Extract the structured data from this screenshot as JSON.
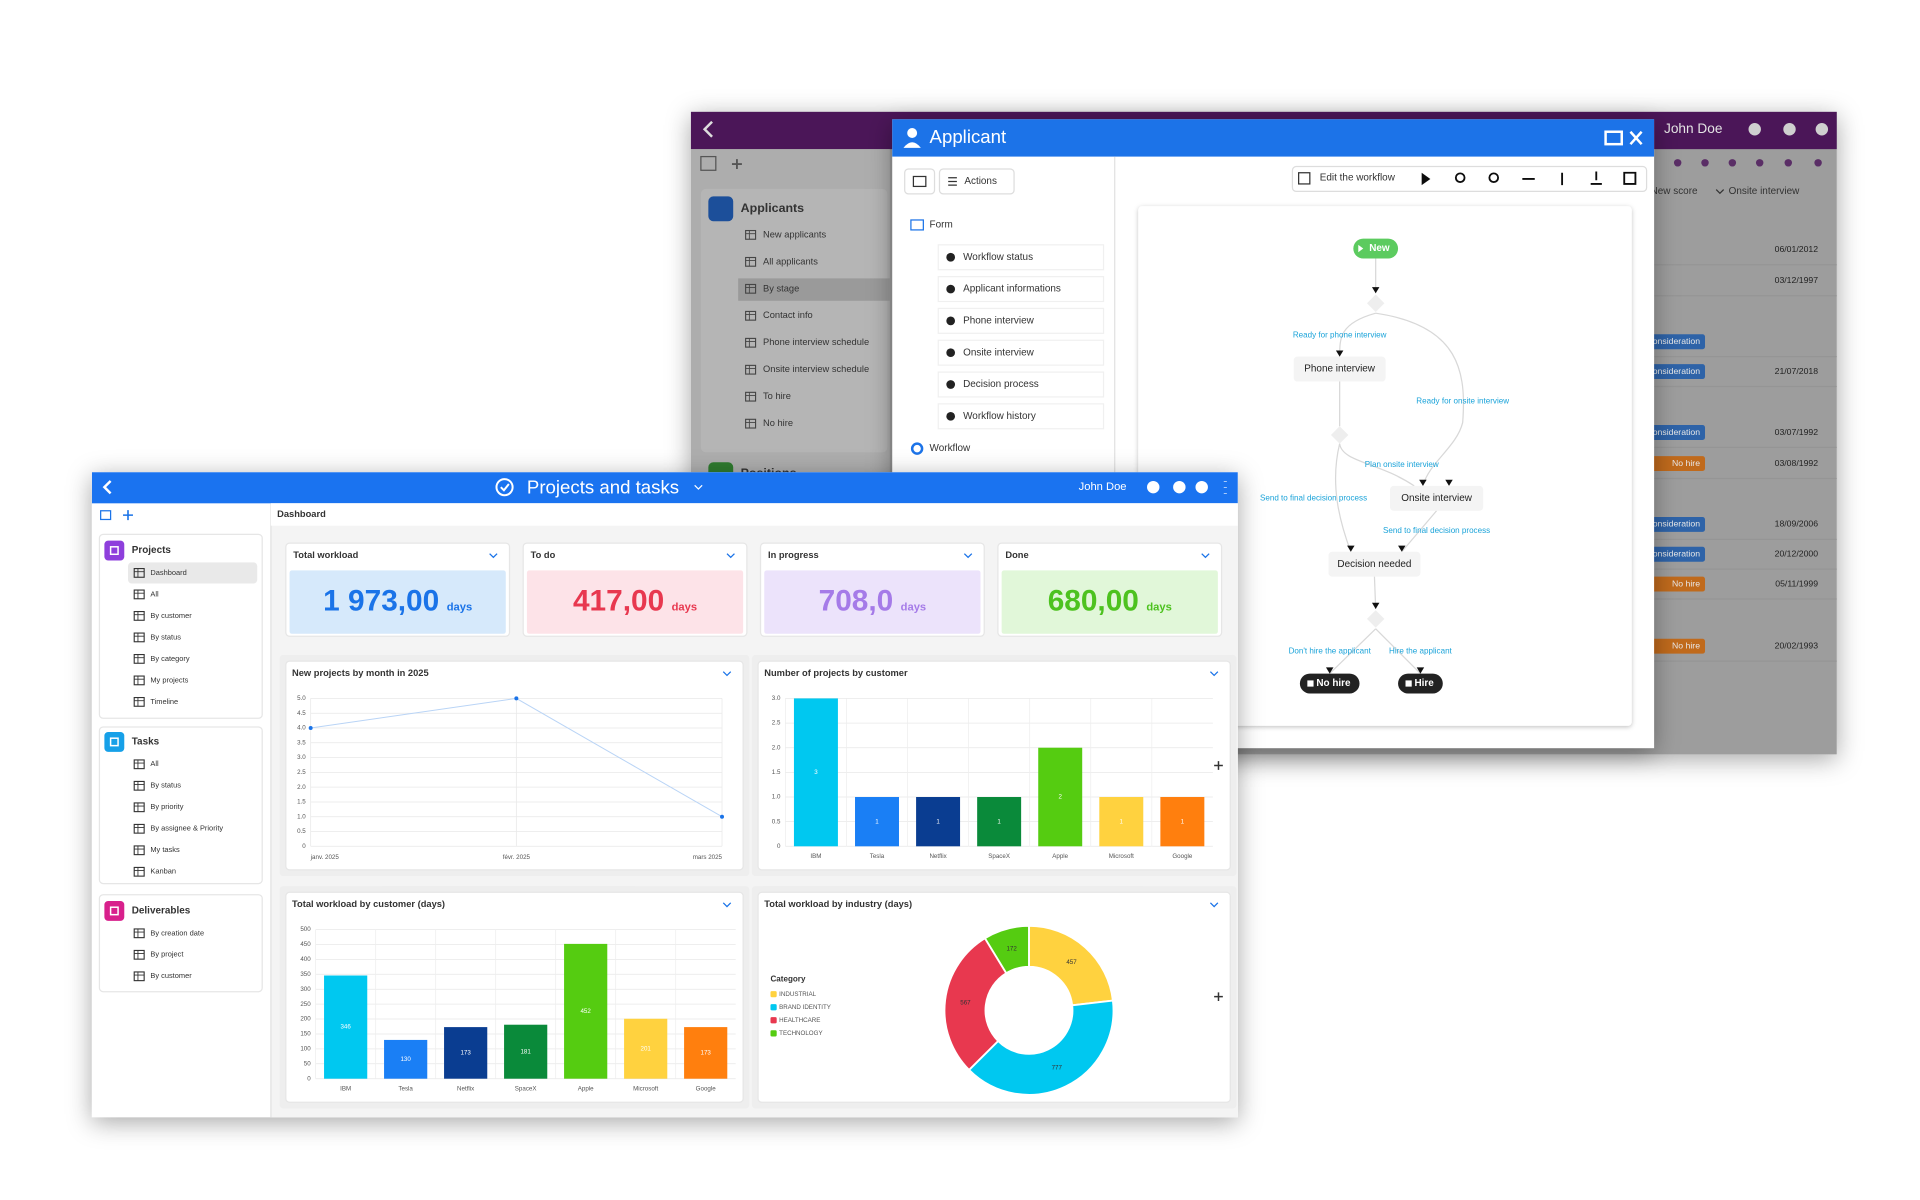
{
  "back_window": {
    "user": "John Doe",
    "sidebar": {
      "groups": [
        {
          "title": "Applicants",
          "items": [
            "New applicants",
            "All applicants",
            "By stage",
            "Contact info",
            "Phone interview schedule",
            "Onsite interview schedule",
            "To hire",
            "No hire"
          ]
        },
        {
          "title": "Positions"
        }
      ]
    },
    "table": {
      "headers": [
        "New score",
        "Onsite interview"
      ],
      "rows": [
        {
          "date": "06/01/2012"
        },
        {
          "date": "03/12/1997"
        },
        {
          "status": "Consideration"
        },
        {
          "status": "Consideration",
          "date": "21/07/2018"
        },
        {
          "status": "Consideration",
          "date": "03/07/1992"
        },
        {
          "status": "No hire",
          "date": "03/08/1992"
        },
        {
          "status": "Consideration",
          "date": "18/09/2006"
        },
        {
          "status": "Consideration",
          "date": "20/12/2000"
        },
        {
          "status": "No hire",
          "date": "05/11/1999"
        },
        {
          "status": "No hire",
          "date": "20/02/1993"
        }
      ]
    }
  },
  "modal": {
    "title": "Applicant",
    "actions": "Actions",
    "edit_workflow": "Edit the workflow",
    "tree": {
      "form": "Form",
      "items": [
        "Workflow status",
        "Applicant informations",
        "Phone interview",
        "Onsite interview",
        "Decision process",
        "Workflow history"
      ],
      "workflow": "Workflow"
    },
    "diagram": {
      "nodes": [
        "New",
        "Phone interview",
        "Onsite interview",
        "Decision needed",
        "No hire",
        "Hire"
      ],
      "edges": [
        "Ready for phone interview",
        "Ready for onsite interview",
        "Plan onsite interview",
        "Send to final decision process",
        "Send to final decision process",
        "Don't hire the applicant",
        "Hire the applicant"
      ]
    }
  },
  "front_window": {
    "title": "Projects and tasks",
    "user": "John Doe",
    "breadcrumb": "Dashboard",
    "sidebar": {
      "groups": [
        {
          "title": "Projects",
          "items": [
            "Dashboard",
            "All",
            "By customer",
            "By status",
            "By category",
            "My projects",
            "Timeline"
          ]
        },
        {
          "title": "Tasks",
          "items": [
            "All",
            "By status",
            "By priority",
            "By assignee & Priority",
            "My tasks",
            "Kanban"
          ]
        },
        {
          "title": "Deliverables",
          "items": [
            "By creation date",
            "By project",
            "By customer"
          ]
        }
      ]
    },
    "kpis": [
      {
        "title": "Total workload",
        "value": "1 973,00",
        "unit": "days"
      },
      {
        "title": "To do",
        "value": "417,00",
        "unit": "days"
      },
      {
        "title": "In progress",
        "value": "708,0",
        "unit": "days"
      },
      {
        "title": "Done",
        "value": "680,00",
        "unit": "days"
      }
    ]
  },
  "chart_data": [
    {
      "type": "line",
      "title": "New projects by month in 2025",
      "categories": [
        "janv. 2025",
        "févr. 2025",
        "mars 2025"
      ],
      "values": [
        4,
        5,
        1
      ],
      "color": "#1a73e8",
      "ylim": [
        0,
        5
      ],
      "yticks": [
        0,
        0.5,
        {
          "value": 1,
          "label": "1.0"
        },
        1.5,
        {
          "value": 2,
          "label": "2.0"
        },
        2.5,
        {
          "value": 3,
          "label": "3.0"
        },
        3.5,
        {
          "value": 4,
          "label": "4.0"
        },
        4.5,
        {
          "value": 5,
          "label": "5.0"
        }
      ],
      "grid": true
    },
    {
      "type": "bar",
      "title": "Number of projects by customer",
      "categories": [
        "IBM",
        "Tesla",
        "Netflix",
        "SpaceX",
        "Apple",
        "Microsoft",
        "Google"
      ],
      "values": [
        3,
        1,
        1,
        1,
        2,
        1,
        1
      ],
      "colors": [
        "#00c8f0",
        "#1a7ff5",
        "#0a3d91",
        "#0a8a3a",
        "#55cc11",
        "#ffd23f",
        "#ff7f0e"
      ],
      "ylim": [
        0,
        3
      ],
      "yticks": [
        0,
        0.5,
        {
          "value": 1,
          "label": "1.0"
        },
        1.5,
        {
          "value": 2,
          "label": "2.0"
        },
        2.5,
        {
          "value": 3,
          "label": "3.0"
        }
      ],
      "grid": true
    },
    {
      "type": "bar",
      "title": "Total workload by customer (days)",
      "categories": [
        "IBM",
        "Tesla",
        "Netflix",
        "SpaceX",
        "Apple",
        "Microsoft",
        "Google"
      ],
      "values": [
        346,
        130,
        173,
        181,
        452,
        201,
        173
      ],
      "colors": [
        "#00c8f0",
        "#1a7ff5",
        "#0a3d91",
        "#0a8a3a",
        "#55cc11",
        "#ffd23f",
        "#ff7f0e"
      ],
      "ylim": [
        0,
        500
      ],
      "yticks": [
        0,
        50,
        100,
        150,
        200,
        250,
        300,
        350,
        400,
        450,
        500
      ],
      "grid": true
    },
    {
      "type": "pie",
      "title": "Total workload by industry (days)",
      "legend_title": "Category",
      "categories": [
        "INDUSTRIAL",
        "BRAND IDENTITY",
        "HEALTHCARE",
        "TECHNOLOGY"
      ],
      "values": [
        457,
        777,
        567,
        172
      ],
      "colors": [
        "#ffd23f",
        "#00c8f0",
        "#e8384f",
        "#55cc11"
      ],
      "donut": true,
      "legend": "left"
    }
  ]
}
